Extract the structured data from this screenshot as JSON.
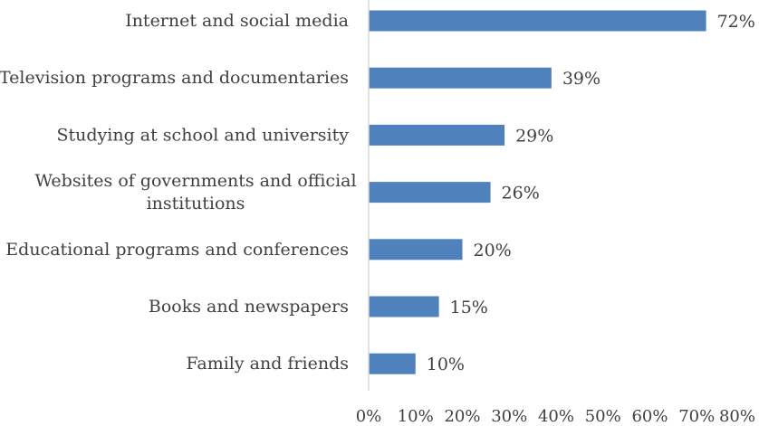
{
  "chart_data": {
    "type": "bar",
    "orientation": "horizontal",
    "title": "",
    "xlabel": "",
    "ylabel": "",
    "categories": [
      "Internet and social media",
      "Television programs and documentaries",
      "Studying at school and university",
      "Websites of governments and official institutions",
      "Educational programs and conferences",
      "Books and newspapers",
      "Family and friends"
    ],
    "category_label_lines": [
      [
        "Internet and social media"
      ],
      [
        "Television programs and documentaries"
      ],
      [
        "Studying at school and university"
      ],
      [
        "Websites of governments and official",
        "institutions"
      ],
      [
        "Educational programs and conferences"
      ],
      [
        "Books and newspapers"
      ],
      [
        "Family and friends"
      ]
    ],
    "values": [
      72,
      39,
      29,
      26,
      20,
      15,
      10
    ],
    "data_labels": [
      "72%",
      "39%",
      "29%",
      "26%",
      "20%",
      "15%",
      "10%"
    ],
    "xlim": [
      0,
      80
    ],
    "x_ticks": [
      0,
      10,
      20,
      30,
      40,
      50,
      60,
      70,
      80
    ],
    "x_tick_labels": [
      "0%",
      "10%",
      "20%",
      "30%",
      "40%",
      "50%",
      "60%",
      "70%",
      "80%"
    ],
    "grid": false,
    "legend": "none",
    "bar_color": "#4f81bd",
    "axis_color": "#d9d9d9",
    "text_color": "#404040"
  }
}
